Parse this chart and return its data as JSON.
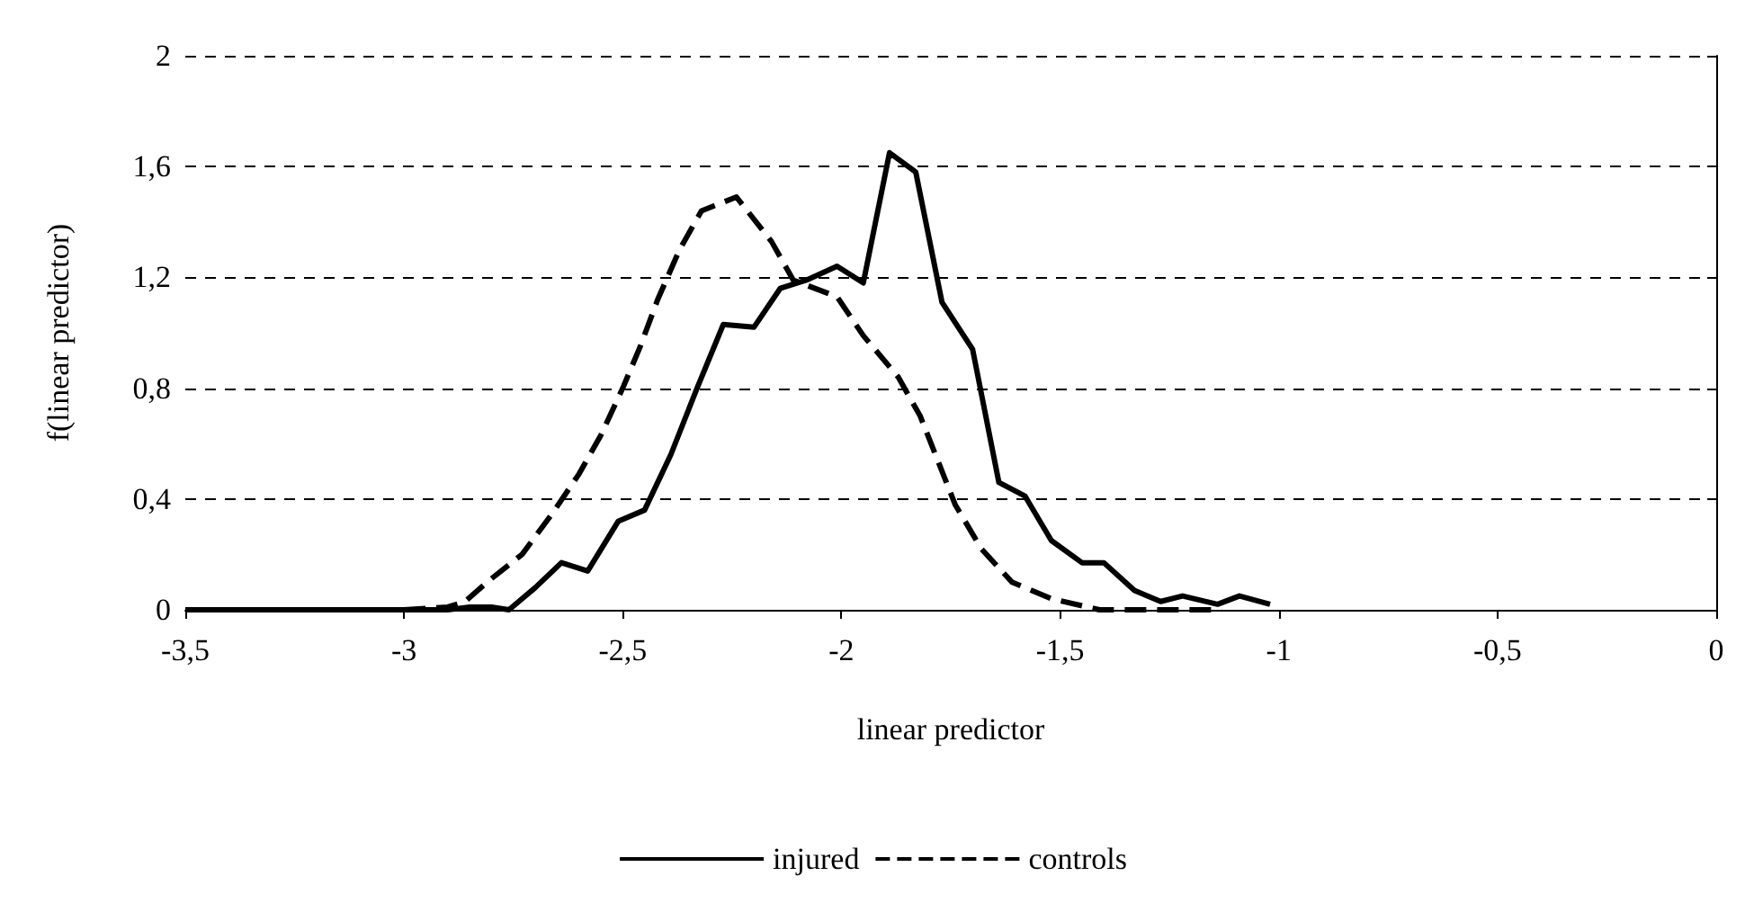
{
  "chart_data": {
    "type": "line",
    "xlabel": "linear predictor",
    "ylabel": "f(linear predictor)",
    "xlim": [
      -3.5,
      0
    ],
    "ylim": [
      0,
      2
    ],
    "xticks": [
      {
        "value": -3.5,
        "label": "-3,5"
      },
      -3,
      {
        "value": -2.5,
        "label": "-2,5"
      },
      -2,
      {
        "value": -1.5,
        "label": "-1,5"
      },
      -1,
      {
        "value": -0.5,
        "label": "-0,5"
      },
      0
    ],
    "yticks": [
      0,
      {
        "value": 0.4,
        "label": "0,4"
      },
      {
        "value": 0.8,
        "label": "0,8"
      },
      {
        "value": 1.2,
        "label": "1,2"
      },
      {
        "value": 1.6,
        "label": "1,6"
      },
      2
    ],
    "grid": "y",
    "legend": "bottom",
    "marker": "none",
    "series": [
      {
        "name": "injured",
        "color": "#000000",
        "line_style": "solid",
        "x": [
          -3.5,
          -3.2,
          -2.9,
          -2.85,
          -2.8,
          -2.76,
          -2.7,
          -2.64,
          -2.58,
          -2.51,
          -2.45,
          -2.39,
          -2.33,
          -2.27,
          -2.2,
          -2.14,
          -2.08,
          -2.01,
          -1.95,
          -1.89,
          -1.83,
          -1.77,
          -1.7,
          -1.64,
          -1.58,
          -1.52,
          -1.45,
          -1.4,
          -1.33,
          -1.27,
          -1.22,
          -1.14,
          -1.09,
          -1.02
        ],
        "values": [
          0,
          0,
          0,
          0.01,
          0.01,
          0,
          0.08,
          0.17,
          0.14,
          0.32,
          0.36,
          0.56,
          0.8,
          1.03,
          1.02,
          1.16,
          1.19,
          1.24,
          1.18,
          1.65,
          1.58,
          1.11,
          0.94,
          0.46,
          0.41,
          0.25,
          0.17,
          0.17,
          0.07,
          0.03,
          0.05,
          0.02,
          0.05,
          0.02
        ]
      },
      {
        "name": "controls",
        "color": "#000000",
        "line_style": "dashed",
        "x": [
          -3.0,
          -2.9,
          -2.86,
          -2.81,
          -2.73,
          -2.66,
          -2.6,
          -2.55,
          -2.5,
          -2.46,
          -2.42,
          -2.37,
          -2.32,
          -2.24,
          -2.16,
          -2.11,
          -2.01,
          -1.95,
          -1.87,
          -1.82,
          -1.78,
          -1.74,
          -1.68,
          -1.61,
          -1.52,
          -1.41,
          -1.3,
          -1.2,
          -1.13
        ],
        "values": [
          0,
          0.01,
          0.03,
          0.1,
          0.2,
          0.35,
          0.49,
          0.63,
          0.8,
          0.95,
          1.12,
          1.3,
          1.44,
          1.49,
          1.33,
          1.19,
          1.13,
          0.99,
          0.84,
          0.7,
          0.54,
          0.38,
          0.22,
          0.1,
          0.04,
          0,
          0,
          0,
          0
        ]
      }
    ]
  }
}
